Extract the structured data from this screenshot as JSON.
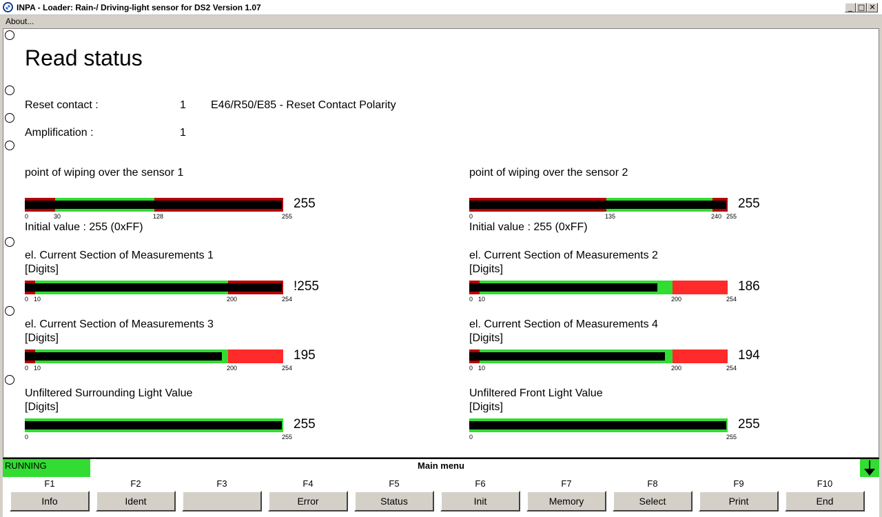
{
  "window": {
    "title": "INPA - Loader:  Rain-/ Driving-light sensor for DS2 Version 1.07"
  },
  "menu": {
    "about": "About..."
  },
  "page": {
    "title": "Read status",
    "reset_contact": {
      "label": "Reset contact :",
      "value": "1",
      "note": "E46/R50/E85 - Reset Contact Polarity"
    },
    "amplification": {
      "label": "Amplification :",
      "value": "1"
    }
  },
  "gauges": [
    {
      "title": "point of wiping over the sensor 1",
      "subtitle": "",
      "value": "255",
      "min": 0,
      "max": 255,
      "good_low": 30,
      "good_high": 128,
      "fill": 255,
      "ticks": [
        "0",
        "30",
        "128",
        "255"
      ],
      "initial": "Initial value : 255 (0xFF)",
      "high_color": "#b50000"
    },
    {
      "title": "point of wiping over the sensor 2",
      "subtitle": "",
      "value": "255",
      "min": 0,
      "max": 255,
      "good_low": 135,
      "good_high": 240,
      "fill": 255,
      "ticks": [
        "0",
        "135",
        "240",
        "255"
      ],
      "initial": "Initial value : 255 (0xFF)",
      "high_color": "#b50000"
    },
    {
      "title": "el. Current Section of Measurements 1",
      "subtitle": "[Digits]",
      "value": "!255",
      "min": 0,
      "max": 254,
      "good_low": 10,
      "good_high": 200,
      "fill": 254,
      "ticks": [
        "0",
        "10",
        "200",
        "254"
      ],
      "initial": "",
      "high_color": "#b50000"
    },
    {
      "title": "el. Current Section of Measurements 2",
      "subtitle": "[Digits]",
      "value": "186",
      "min": 0,
      "max": 254,
      "good_low": 10,
      "good_high": 200,
      "fill": 186,
      "ticks": [
        "0",
        "10",
        "200",
        "254"
      ],
      "initial": "",
      "high_color": "#ff2a2a"
    },
    {
      "title": "el. Current Section of Measurements 3",
      "subtitle": "[Digits]",
      "value": "195",
      "min": 0,
      "max": 254,
      "good_low": 10,
      "good_high": 200,
      "fill": 195,
      "ticks": [
        "0",
        "10",
        "200",
        "254"
      ],
      "initial": "",
      "high_color": "#ff2a2a"
    },
    {
      "title": "el. Current Section of Measurements 4",
      "subtitle": "[Digits]",
      "value": "194",
      "min": 0,
      "max": 254,
      "good_low": 10,
      "good_high": 200,
      "fill": 194,
      "ticks": [
        "0",
        "10",
        "200",
        "254"
      ],
      "initial": "",
      "high_color": "#ff2a2a"
    },
    {
      "title": "Unfiltered Surrounding Light Value",
      "subtitle": "[Digits]",
      "value": "255",
      "min": 0,
      "max": 255,
      "good_low": 0,
      "good_high": 255,
      "fill": 255,
      "ticks": [
        "0",
        "",
        "",
        "255"
      ],
      "initial": "",
      "high_color": "#32dc32"
    },
    {
      "title": "Unfiltered Front Light Value",
      "subtitle": "[Digits]",
      "value": "255",
      "min": 0,
      "max": 255,
      "good_low": 0,
      "good_high": 255,
      "fill": 255,
      "ticks": [
        "0",
        "",
        "",
        "255"
      ],
      "initial": "",
      "high_color": "#32dc32"
    }
  ],
  "status": {
    "running": "RUNNING",
    "menu_title": "Main menu"
  },
  "fkeys": [
    {
      "key": "F1",
      "label": "Info"
    },
    {
      "key": "F2",
      "label": "Ident"
    },
    {
      "key": "F3",
      "label": ""
    },
    {
      "key": "F4",
      "label": "Error"
    },
    {
      "key": "F5",
      "label": "Status"
    },
    {
      "key": "F6",
      "label": "Init"
    },
    {
      "key": "F7",
      "label": "Memory"
    },
    {
      "key": "F8",
      "label": "Select"
    },
    {
      "key": "F9",
      "label": "Print"
    },
    {
      "key": "F10",
      "label": "End"
    }
  ],
  "colors": {
    "good": "#32dc32",
    "dark_red": "#b50000",
    "bright_red": "#ff2a2a",
    "fill": "#000000"
  }
}
